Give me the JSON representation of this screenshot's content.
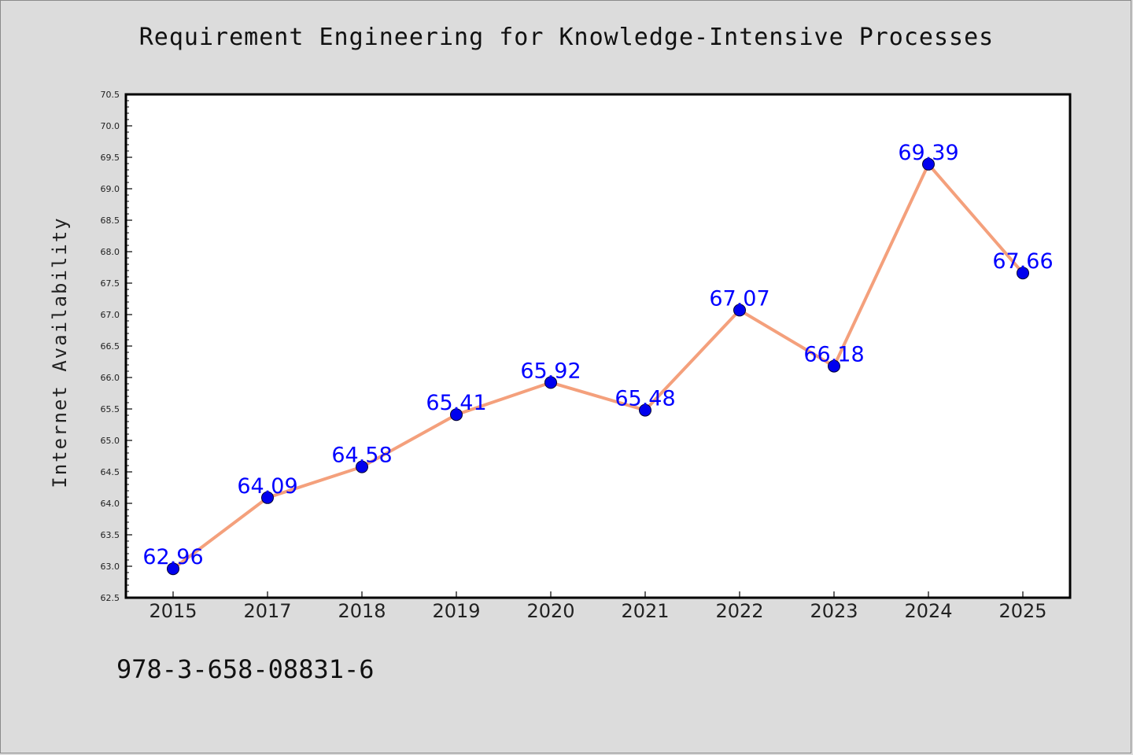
{
  "chart_data": {
    "type": "line",
    "title": "Requirement Engineering for Knowledge-Intensive Processes",
    "xlabel": "",
    "ylabel": "Internet Availability",
    "categories": [
      "2015",
      "2017",
      "2018",
      "2019",
      "2020",
      "2021",
      "2022",
      "2023",
      "2024",
      "2025"
    ],
    "series": [
      {
        "values": [
          62.96,
          64.09,
          64.58,
          65.41,
          65.92,
          65.48,
          67.07,
          66.18,
          69.39,
          67.66
        ]
      }
    ],
    "data_labels": [
      "62.96",
      "64.09",
      "64.58",
      "65.41",
      "65.92",
      "65.48",
      "67.07",
      "66.18",
      "69.39",
      "67.66"
    ],
    "ylim": [
      62.5,
      70.5
    ],
    "yticks": [
      "62.5",
      "63.0",
      "63.5",
      "64.0",
      "64.5",
      "65.0",
      "65.5",
      "66.0",
      "66.5",
      "67.0",
      "67.5",
      "68.0",
      "68.5",
      "69.0",
      "69.5",
      "70.0",
      "70.5"
    ],
    "grid": false,
    "legend": "none",
    "colors": {
      "line": "#f4a07c",
      "marker": "#0000ee",
      "label": "#0000ff",
      "background": "#dcdcdc",
      "plot_background": "#ffffff"
    }
  },
  "footer": {
    "isbn": "978-3-658-08831-6"
  }
}
